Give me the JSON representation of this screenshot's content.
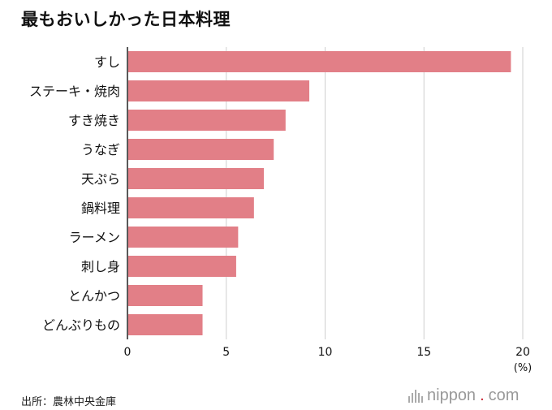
{
  "title": "最もおいしかった日本料理",
  "source": "出所：農林中央金庫",
  "brand": {
    "name": "nippon",
    "dot": ".",
    "suffix": "com",
    "dot_color": "#c8202f"
  },
  "chart_data": {
    "type": "bar",
    "orientation": "horizontal",
    "categories": [
      "すし",
      "ステーキ・焼肉",
      "すき焼き",
      "うなぎ",
      "天ぷら",
      "鍋料理",
      "ラーメン",
      "刺し身",
      "とんかつ",
      "どんぶりもの"
    ],
    "values": [
      19.4,
      9.2,
      8.0,
      7.4,
      6.9,
      6.4,
      5.6,
      5.5,
      3.8,
      3.8
    ],
    "x_ticks": [
      "0",
      "5",
      "10",
      "15",
      "20"
    ],
    "xlim": [
      0,
      20
    ],
    "unit_label": "(%)",
    "bar_color": "#e27f87",
    "grid": true
  }
}
